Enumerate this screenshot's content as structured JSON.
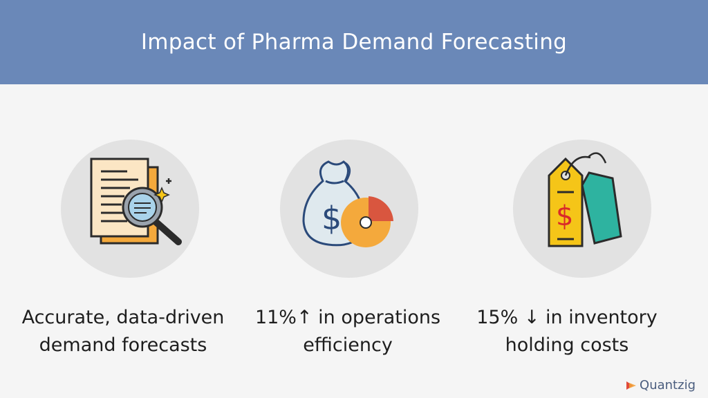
{
  "header": {
    "title": "Impact of Pharma Demand Forecasting"
  },
  "cards": [
    {
      "icon": "document-magnifier-icon",
      "line1": "Accurate, data-driven",
      "line2": "demand forecasts"
    },
    {
      "icon": "money-bag-pie-chart-icon",
      "line1": "11%↑ in operations",
      "line2": "efficiency"
    },
    {
      "icon": "price-tag-dollar-icon",
      "line1": "15% ↓  in inventory",
      "line2": "holding costs"
    }
  ],
  "brand": {
    "name": "Quantzig",
    "colors": {
      "header": "#6a88b8",
      "circle": "#e2e2e2"
    }
  }
}
